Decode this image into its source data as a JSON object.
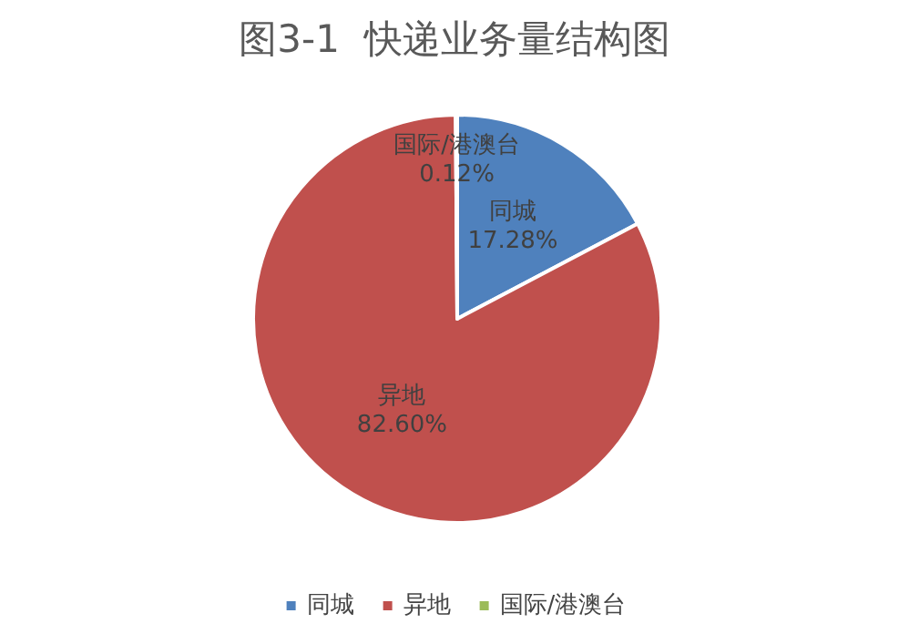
{
  "chart_data": {
    "type": "pie",
    "title": "图3-1  快递业务量结构图",
    "categories": [
      "同城",
      "异地",
      "国际/港澳台"
    ],
    "values": [
      17.28,
      82.6,
      0.12
    ],
    "colors": [
      "#4f81bd",
      "#c0504d",
      "#9bbb59"
    ],
    "value_labels": [
      "17.28%",
      "82.60%",
      "0.12%"
    ],
    "legend": "bottom"
  }
}
